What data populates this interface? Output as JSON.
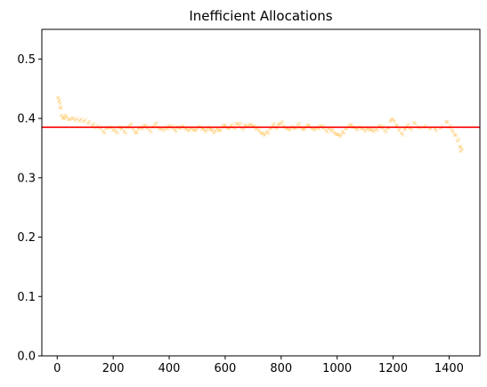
{
  "chart_data": {
    "type": "scatter",
    "title": "Inefficient Allocations",
    "xlabel": "",
    "ylabel": "",
    "xlim": [
      -55,
      1510
    ],
    "ylim": [
      0,
      0.55
    ],
    "x_ticks": [
      0,
      200,
      400,
      600,
      800,
      1000,
      1200,
      1400
    ],
    "y_ticks": [
      0.0,
      0.1,
      0.2,
      0.3,
      0.4,
      0.5
    ],
    "x_tick_labels": [
      "0",
      "200",
      "400",
      "600",
      "800",
      "1000",
      "1200",
      "1400"
    ],
    "y_tick_labels": [
      "0.0",
      "0.1",
      "0.2",
      "0.3",
      "0.4",
      "0.5"
    ],
    "grid": false,
    "colors": {
      "points": "#ffa500",
      "reference_line": "#ff0000"
    },
    "reference_line": {
      "orientation": "horizontal",
      "y": 0.385
    },
    "series": [
      {
        "marker": "x",
        "points": [
          [
            3,
            0.435
          ],
          [
            6,
            0.428
          ],
          [
            10,
            0.418
          ],
          [
            15,
            0.405
          ],
          [
            22,
            0.4
          ],
          [
            30,
            0.405
          ],
          [
            40,
            0.398
          ],
          [
            52,
            0.4
          ],
          [
            65,
            0.397
          ],
          [
            80,
            0.396
          ],
          [
            95,
            0.395
          ],
          [
            110,
            0.392
          ],
          [
            125,
            0.388
          ],
          [
            140,
            0.385
          ],
          [
            155,
            0.383
          ],
          [
            165,
            0.378
          ],
          [
            175,
            0.384
          ],
          [
            190,
            0.385
          ],
          [
            200,
            0.38
          ],
          [
            210,
            0.378
          ],
          [
            220,
            0.385
          ],
          [
            230,
            0.382
          ],
          [
            240,
            0.378
          ],
          [
            250,
            0.385
          ],
          [
            260,
            0.388
          ],
          [
            270,
            0.383
          ],
          [
            280,
            0.376
          ],
          [
            290,
            0.382
          ],
          [
            300,
            0.385
          ],
          [
            310,
            0.388
          ],
          [
            320,
            0.384
          ],
          [
            330,
            0.38
          ],
          [
            340,
            0.386
          ],
          [
            350,
            0.39
          ],
          [
            360,
            0.385
          ],
          [
            370,
            0.383
          ],
          [
            380,
            0.38
          ],
          [
            390,
            0.385
          ],
          [
            400,
            0.387
          ],
          [
            410,
            0.384
          ],
          [
            420,
            0.381
          ],
          [
            430,
            0.385
          ],
          [
            440,
            0.383
          ],
          [
            450,
            0.387
          ],
          [
            460,
            0.382
          ],
          [
            470,
            0.379
          ],
          [
            480,
            0.384
          ],
          [
            490,
            0.38
          ],
          [
            500,
            0.383
          ],
          [
            510,
            0.386
          ],
          [
            520,
            0.382
          ],
          [
            530,
            0.378
          ],
          [
            540,
            0.385
          ],
          [
            550,
            0.381
          ],
          [
            560,
            0.376
          ],
          [
            570,
            0.383
          ],
          [
            580,
            0.38
          ],
          [
            590,
            0.386
          ],
          [
            600,
            0.388
          ],
          [
            610,
            0.383
          ],
          [
            620,
            0.387
          ],
          [
            630,
            0.385
          ],
          [
            640,
            0.391
          ],
          [
            650,
            0.389
          ],
          [
            660,
            0.384
          ],
          [
            670,
            0.388
          ],
          [
            680,
            0.386
          ],
          [
            690,
            0.39
          ],
          [
            700,
            0.387
          ],
          [
            710,
            0.382
          ],
          [
            720,
            0.38
          ],
          [
            730,
            0.375
          ],
          [
            740,
            0.372
          ],
          [
            750,
            0.378
          ],
          [
            760,
            0.383
          ],
          [
            770,
            0.388
          ],
          [
            780,
            0.385
          ],
          [
            790,
            0.39
          ],
          [
            800,
            0.392
          ],
          [
            810,
            0.387
          ],
          [
            820,
            0.383
          ],
          [
            830,
            0.381
          ],
          [
            840,
            0.386
          ],
          [
            850,
            0.384
          ],
          [
            860,
            0.389
          ],
          [
            870,
            0.385
          ],
          [
            880,
            0.382
          ],
          [
            890,
            0.386
          ],
          [
            900,
            0.388
          ],
          [
            910,
            0.383
          ],
          [
            920,
            0.381
          ],
          [
            930,
            0.385
          ],
          [
            940,
            0.387
          ],
          [
            950,
            0.384
          ],
          [
            960,
            0.38
          ],
          [
            970,
            0.383
          ],
          [
            980,
            0.379
          ],
          [
            990,
            0.376
          ],
          [
            1000,
            0.373
          ],
          [
            1010,
            0.37
          ],
          [
            1020,
            0.378
          ],
          [
            1030,
            0.383
          ],
          [
            1040,
            0.386
          ],
          [
            1050,
            0.389
          ],
          [
            1060,
            0.385
          ],
          [
            1070,
            0.381
          ],
          [
            1080,
            0.386
          ],
          [
            1090,
            0.383
          ],
          [
            1100,
            0.379
          ],
          [
            1110,
            0.384
          ],
          [
            1120,
            0.381
          ],
          [
            1130,
            0.378
          ],
          [
            1140,
            0.383
          ],
          [
            1150,
            0.387
          ],
          [
            1160,
            0.384
          ],
          [
            1170,
            0.38
          ],
          [
            1180,
            0.384
          ],
          [
            1190,
            0.396
          ],
          [
            1200,
            0.398
          ],
          [
            1210,
            0.388
          ],
          [
            1220,
            0.38
          ],
          [
            1230,
            0.375
          ],
          [
            1240,
            0.382
          ],
          [
            1250,
            0.387
          ],
          [
            1260,
            0.384
          ],
          [
            1275,
            0.393
          ],
          [
            1290,
            0.386
          ],
          [
            1310,
            0.385
          ],
          [
            1330,
            0.383
          ],
          [
            1350,
            0.382
          ],
          [
            1370,
            0.384
          ],
          [
            1390,
            0.394
          ],
          [
            1400,
            0.385
          ],
          [
            1410,
            0.38
          ],
          [
            1420,
            0.372
          ],
          [
            1430,
            0.362
          ],
          [
            1438,
            0.352
          ],
          [
            1442,
            0.345
          ]
        ]
      }
    ]
  }
}
